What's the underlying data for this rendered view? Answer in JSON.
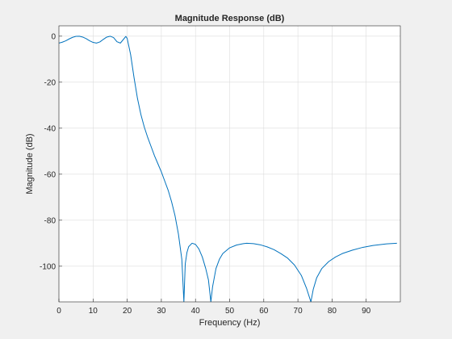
{
  "chart_data": {
    "type": "line",
    "title": "Magnitude Response (dB)",
    "xlabel": "Frequency (Hz)",
    "ylabel": "Magnitude (dB)",
    "xlim": [
      0,
      100
    ],
    "ylim": [
      -115.5,
      4.5
    ],
    "xticks": [
      0,
      10,
      20,
      30,
      40,
      50,
      60,
      70,
      80,
      90
    ],
    "yticks": [
      0,
      -20,
      -40,
      -60,
      -80,
      -100
    ],
    "grid": true,
    "series": [
      {
        "color": "#0072bd",
        "points": [
          [
            0,
            -3
          ],
          [
            1,
            -2.6
          ],
          [
            2,
            -2
          ],
          [
            3,
            -1.2
          ],
          [
            4,
            -0.5
          ],
          [
            5,
            -0.05
          ],
          [
            6,
            0
          ],
          [
            7,
            -0.4
          ],
          [
            8,
            -1.1
          ],
          [
            9,
            -2
          ],
          [
            10,
            -2.7
          ],
          [
            11,
            -3
          ],
          [
            12,
            -2.5
          ],
          [
            13,
            -1.4
          ],
          [
            14,
            -0.4
          ],
          [
            15,
            0
          ],
          [
            16,
            -0.6
          ],
          [
            17,
            -2.4
          ],
          [
            18,
            -3
          ],
          [
            19,
            -1.2
          ],
          [
            19.6,
            -0.1
          ],
          [
            20,
            -1
          ],
          [
            21,
            -8
          ],
          [
            22,
            -18
          ],
          [
            23,
            -27
          ],
          [
            24,
            -34
          ],
          [
            25,
            -39.5
          ],
          [
            26,
            -44
          ],
          [
            27,
            -48
          ],
          [
            28,
            -52
          ],
          [
            29,
            -55.5
          ],
          [
            30,
            -59
          ],
          [
            31,
            -63
          ],
          [
            32,
            -67
          ],
          [
            33,
            -72
          ],
          [
            34,
            -78
          ],
          [
            35,
            -86
          ],
          [
            36,
            -97
          ],
          [
            36.6,
            -115.5
          ],
          [
            37,
            -99
          ],
          [
            37.5,
            -94
          ],
          [
            38,
            -91.5
          ],
          [
            39,
            -90
          ],
          [
            40,
            -90.5
          ],
          [
            41,
            -92.5
          ],
          [
            42,
            -96
          ],
          [
            43,
            -101
          ],
          [
            43.8,
            -106
          ],
          [
            44.5,
            -115.5
          ],
          [
            45,
            -109
          ],
          [
            46,
            -101
          ],
          [
            47,
            -97
          ],
          [
            48,
            -94.5
          ],
          [
            50,
            -92
          ],
          [
            52,
            -90.8
          ],
          [
            54,
            -90.2
          ],
          [
            55,
            -90
          ],
          [
            57,
            -90.2
          ],
          [
            59,
            -90.7
          ],
          [
            61,
            -91.6
          ],
          [
            63,
            -92.8
          ],
          [
            65,
            -94.5
          ],
          [
            67,
            -96.5
          ],
          [
            69,
            -99.5
          ],
          [
            71,
            -104
          ],
          [
            72.5,
            -109.5
          ],
          [
            73.8,
            -115.5
          ],
          [
            74.5,
            -110
          ],
          [
            75.5,
            -105
          ],
          [
            77,
            -101
          ],
          [
            79,
            -98
          ],
          [
            81,
            -96
          ],
          [
            83,
            -94.5
          ],
          [
            86,
            -93
          ],
          [
            89,
            -91.8
          ],
          [
            92,
            -91
          ],
          [
            96,
            -90.3
          ],
          [
            99,
            -90
          ]
        ]
      }
    ]
  }
}
